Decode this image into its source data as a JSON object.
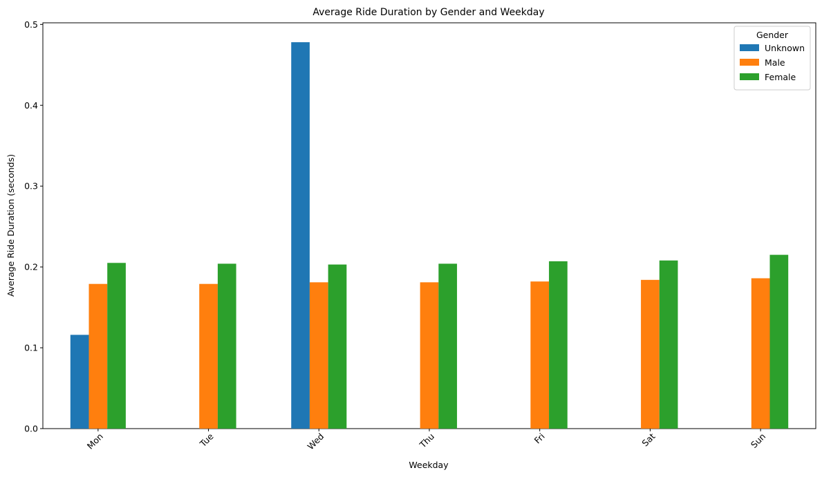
{
  "chart_data": {
    "type": "bar",
    "title": "Average Ride Duration by Gender and Weekday",
    "xlabel": "Weekday",
    "ylabel": "Average Ride Duration (seconds)",
    "categories": [
      "Mon",
      "Tue",
      "Wed",
      "Thu",
      "Fri",
      "Sat",
      "Sun"
    ],
    "ylim": [
      0,
      0.502
    ],
    "yticks": [
      0.0,
      0.1,
      0.2,
      0.3,
      0.4,
      0.5
    ],
    "ytick_labels": [
      "0.0",
      "0.1",
      "0.2",
      "0.3",
      "0.4",
      "0.5"
    ],
    "grid": false,
    "legend": {
      "title": "Gender",
      "placement": "top-right"
    },
    "series": [
      {
        "name": "Unknown",
        "color": "#1f77b4",
        "values": [
          0.116,
          null,
          0.478,
          null,
          null,
          null,
          null
        ]
      },
      {
        "name": "Male",
        "color": "#ff7f0e",
        "values": [
          0.179,
          0.179,
          0.181,
          0.181,
          0.182,
          0.184,
          0.186
        ]
      },
      {
        "name": "Female",
        "color": "#2ca02c",
        "values": [
          0.205,
          0.204,
          0.203,
          0.204,
          0.207,
          0.208,
          0.215
        ]
      }
    ]
  }
}
